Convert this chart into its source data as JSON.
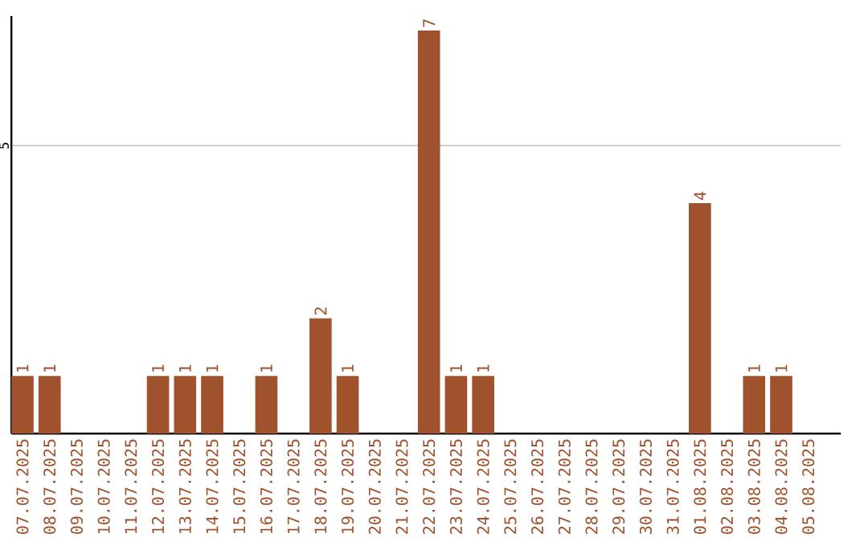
{
  "chart_data": {
    "type": "bar",
    "categories": [
      "07.07.2025",
      "08.07.2025",
      "09.07.2025",
      "10.07.2025",
      "11.07.2025",
      "12.07.2025",
      "13.07.2025",
      "14.07.2025",
      "15.07.2025",
      "16.07.2025",
      "17.07.2025",
      "18.07.2025",
      "19.07.2025",
      "20.07.2025",
      "21.07.2025",
      "22.07.2025",
      "23.07.2025",
      "24.07.2025",
      "25.07.2025",
      "26.07.2025",
      "27.07.2025",
      "28.07.2025",
      "29.07.2025",
      "30.07.2025",
      "31.07.2025",
      "01.08.2025",
      "02.08.2025",
      "03.08.2025",
      "04.08.2025",
      "05.08.2025"
    ],
    "values": [
      1,
      1,
      0,
      0,
      0,
      1,
      1,
      1,
      0,
      1,
      0,
      2,
      1,
      0,
      0,
      7,
      1,
      1,
      0,
      0,
      0,
      0,
      0,
      0,
      0,
      4,
      0,
      1,
      1,
      0
    ],
    "value_labels": [
      "1",
      "1",
      null,
      null,
      null,
      "1",
      "1",
      "1",
      null,
      "1",
      null,
      "2",
      "1",
      null,
      null,
      "7",
      "1",
      "1",
      null,
      null,
      null,
      null,
      null,
      null,
      null,
      "4",
      null,
      "1",
      "1",
      null
    ],
    "color": "#a0522d",
    "ylim": [
      0,
      7.25
    ],
    "yticks": [
      5
    ],
    "grid": "y"
  }
}
